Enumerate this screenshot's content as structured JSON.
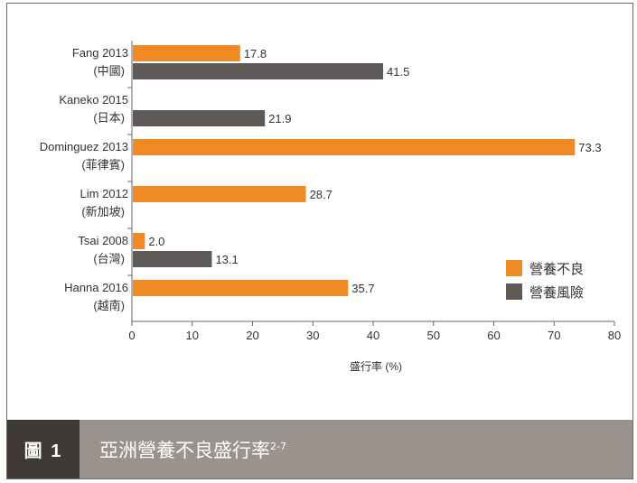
{
  "chart_data": {
    "type": "bar",
    "orientation": "horizontal",
    "categories": [
      {
        "name": "Fang 2013",
        "region": "(中國)"
      },
      {
        "name": "Kaneko 2015",
        "region": "(日本)"
      },
      {
        "name": "Dominguez 2013",
        "region": "(菲律賓)"
      },
      {
        "name": "Lim 2012",
        "region": "(新加坡)"
      },
      {
        "name": "Tsai 2008",
        "region": "(台灣)"
      },
      {
        "name": "Hanna 2016",
        "region": "(越南)"
      }
    ],
    "series": [
      {
        "name": "營養不良",
        "color": "#f08a24",
        "values": [
          17.8,
          null,
          73.3,
          28.7,
          2.0,
          35.7
        ]
      },
      {
        "name": "營養風險",
        "color": "#5f5957",
        "values": [
          41.5,
          21.9,
          null,
          null,
          13.1,
          null
        ]
      }
    ],
    "xlabel": "盛行率 (%)",
    "xlim": [
      0,
      80
    ],
    "xticks": [
      0,
      10,
      20,
      30,
      40,
      50,
      60,
      70,
      80
    ],
    "grid": false,
    "legend_position": "right"
  },
  "caption": {
    "label": "圖 1",
    "title": "亞洲營養不良盛行率",
    "superscript": "2-7"
  }
}
